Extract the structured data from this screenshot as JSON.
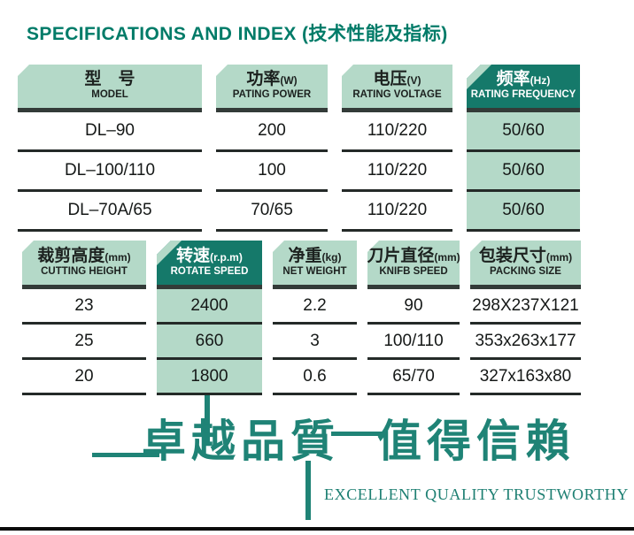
{
  "title": "SPECIFICATIONS AND INDEX (技术性能及指标)",
  "colors": {
    "accent_teal": "#007b68",
    "header_dark": "#15796a",
    "header_light": "#b4d9c8",
    "slogan_teal": "#1f8376",
    "rule_black": "#0a0a0a"
  },
  "table1": {
    "headers": [
      {
        "zh": "型　号",
        "unit": "",
        "en": "MODEL"
      },
      {
        "zh": "功率",
        "unit": "(W)",
        "en": "PATING POWER"
      },
      {
        "zh": "电压",
        "unit": "(V)",
        "en": "RATING VOLTAGE"
      },
      {
        "zh": "频率",
        "unit": "(Hz)",
        "en": "RATING FREQUENCY"
      }
    ],
    "rows": [
      [
        "DL–90",
        "200",
        "110/220",
        "50/60"
      ],
      [
        "DL–100/110",
        "100",
        "110/220",
        "50/60"
      ],
      [
        "DL–70A/65",
        "70/65",
        "110/220",
        "50/60"
      ]
    ]
  },
  "table2": {
    "headers": [
      {
        "zh": "裁剪高度",
        "unit": "(mm)",
        "en": "CUTTING HEIGHT"
      },
      {
        "zh": "转速",
        "unit": "(r.p.m)",
        "en": "ROTATE SPEED"
      },
      {
        "zh": "净重",
        "unit": "(kg)",
        "en": "NET WEIGHT"
      },
      {
        "zh": "刀片直径",
        "unit": "(mm)",
        "en": "KNIFB SPEED"
      },
      {
        "zh": "包装尺寸",
        "unit": "(mm)",
        "en": "PACKING SIZE"
      }
    ],
    "rows": [
      [
        "23",
        "2400",
        "2.2",
        "90",
        "298X237X121"
      ],
      [
        "25",
        "660",
        "3",
        "100/110",
        "353x263x177"
      ],
      [
        "20",
        "1800",
        "0.6",
        "65/70",
        "327x163x80"
      ]
    ]
  },
  "footer": {
    "slogan_zh_part1": "卓越品質",
    "slogan_zh_part2": "值得信賴",
    "slogan_en": "EXCELLENT QUALITY TRUSTWORTHY"
  }
}
